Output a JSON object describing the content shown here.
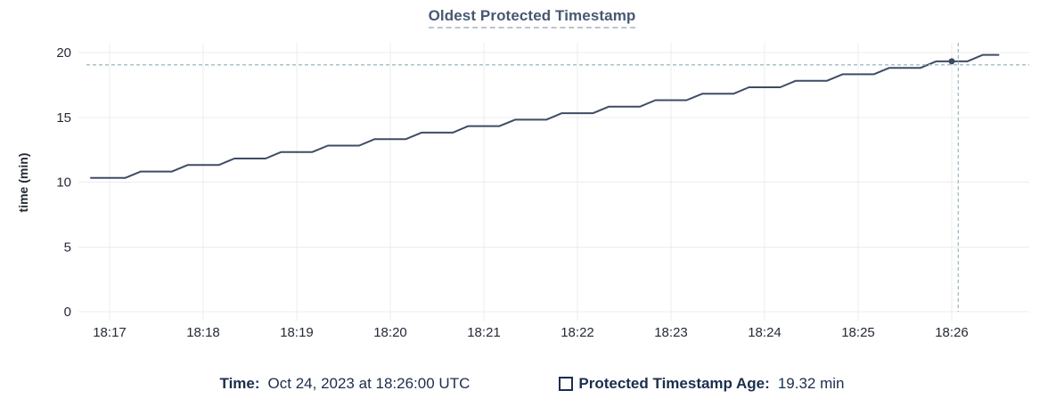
{
  "colors": {
    "title": "#475872",
    "title_underline": "#bcc3cf",
    "series_line": "#3e4c63",
    "hover_dot": "#3b4a5f",
    "crosshair": "#a4bbc5",
    "gridline": "#ececec",
    "axis_tick_text": "#242a35",
    "legend_text": "#1b2e4d",
    "background": "#ffffff"
  },
  "chart": {
    "title": "Oldest Protected Timestamp",
    "y_axis_title": "time (min)"
  },
  "chart_data": {
    "type": "line",
    "title": "Oldest Protected Timestamp",
    "xlabel": "",
    "ylabel": "time (min)",
    "ylim": [
      0,
      20
    ],
    "y_ticks": [
      0,
      5,
      10,
      15,
      20
    ],
    "x_tick_labels": [
      "18:17",
      "18:18",
      "18:19",
      "18:20",
      "18:21",
      "18:22",
      "18:23",
      "18:24",
      "18:25",
      "18:26"
    ],
    "x_unit": "minutes after 18:17 UTC",
    "x_domain": [
      -0.26,
      9.83
    ],
    "grid": true,
    "legend_position": "bottom",
    "series": [
      {
        "name": "Protected Timestamp Age",
        "unit": "min",
        "points": [
          [
            -0.2,
            10.32
          ],
          [
            0.167,
            10.32
          ],
          [
            0.333,
            10.82
          ],
          [
            0.667,
            10.82
          ],
          [
            0.833,
            11.32
          ],
          [
            1.167,
            11.32
          ],
          [
            1.333,
            11.82
          ],
          [
            1.667,
            11.82
          ],
          [
            1.833,
            12.32
          ],
          [
            2.167,
            12.32
          ],
          [
            2.333,
            12.82
          ],
          [
            2.667,
            12.82
          ],
          [
            2.833,
            13.32
          ],
          [
            3.167,
            13.32
          ],
          [
            3.333,
            13.82
          ],
          [
            3.667,
            13.82
          ],
          [
            3.833,
            14.32
          ],
          [
            4.167,
            14.32
          ],
          [
            4.333,
            14.82
          ],
          [
            4.667,
            14.82
          ],
          [
            4.833,
            15.32
          ],
          [
            5.167,
            15.32
          ],
          [
            5.333,
            15.82
          ],
          [
            5.667,
            15.82
          ],
          [
            5.833,
            16.32
          ],
          [
            6.167,
            16.32
          ],
          [
            6.333,
            16.82
          ],
          [
            6.667,
            16.82
          ],
          [
            6.833,
            17.32
          ],
          [
            7.167,
            17.32
          ],
          [
            7.333,
            17.82
          ],
          [
            7.667,
            17.82
          ],
          [
            7.833,
            18.32
          ],
          [
            8.167,
            18.32
          ],
          [
            8.333,
            18.82
          ],
          [
            8.667,
            18.82
          ],
          [
            8.833,
            19.32
          ],
          [
            9.167,
            19.32
          ],
          [
            9.333,
            19.82
          ],
          [
            9.5,
            19.82
          ]
        ]
      }
    ],
    "hover": {
      "snapped_x_minutes": 9.0,
      "snapped_time": "18:26:00",
      "snapped_value": 19.32,
      "crosshair_x_minutes": 9.07,
      "crosshair_value": 19.05
    }
  },
  "tooltip_legend": {
    "time_label": "Time:",
    "time_value": "Oct 24, 2023 at 18:26:00 UTC",
    "series_label": "Protected Timestamp Age:",
    "series_value": "19.32 min"
  }
}
